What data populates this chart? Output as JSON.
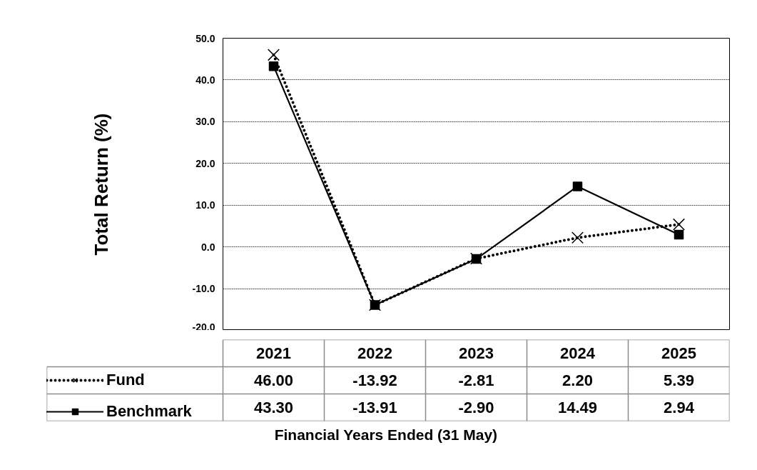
{
  "chart_data": {
    "type": "line",
    "ylabel": "Total Return (%)",
    "annotations": [
      "Financial  Years Ended (31 May)"
    ],
    "categories": [
      "2021",
      "2022",
      "2023",
      "2024",
      "2025"
    ],
    "series": [
      {
        "name": "Fund",
        "color": "#000000",
        "marker": "cross",
        "line_style": "dotted",
        "values": [
          46.0,
          -13.92,
          -2.81,
          2.2,
          5.39
        ],
        "value_labels": [
          "46.00",
          "-13.92",
          "-2.81",
          "2.20",
          "5.39"
        ]
      },
      {
        "name": "Benchmark",
        "color": "#000000",
        "marker": "square",
        "line_style": "solid",
        "values": [
          43.3,
          -13.91,
          -2.9,
          14.49,
          2.94
        ],
        "value_labels": [
          "43.30",
          "-13.91",
          "-2.90",
          "14.49",
          "2.94"
        ]
      }
    ],
    "ylim": [
      -20,
      50
    ],
    "yticks": [
      {
        "value": -20,
        "label": "-20.0"
      },
      {
        "value": -10,
        "label": "-10.0"
      },
      {
        "value": 0,
        "label": "0.0"
      },
      {
        "value": 10,
        "label": "10.0"
      },
      {
        "value": 20,
        "label": "20.0"
      },
      {
        "value": 30,
        "label": "30.0"
      },
      {
        "value": 40,
        "label": "40.0"
      },
      {
        "value": 50,
        "label": "50.0"
      }
    ],
    "grid": "y",
    "legend": "bottom"
  }
}
